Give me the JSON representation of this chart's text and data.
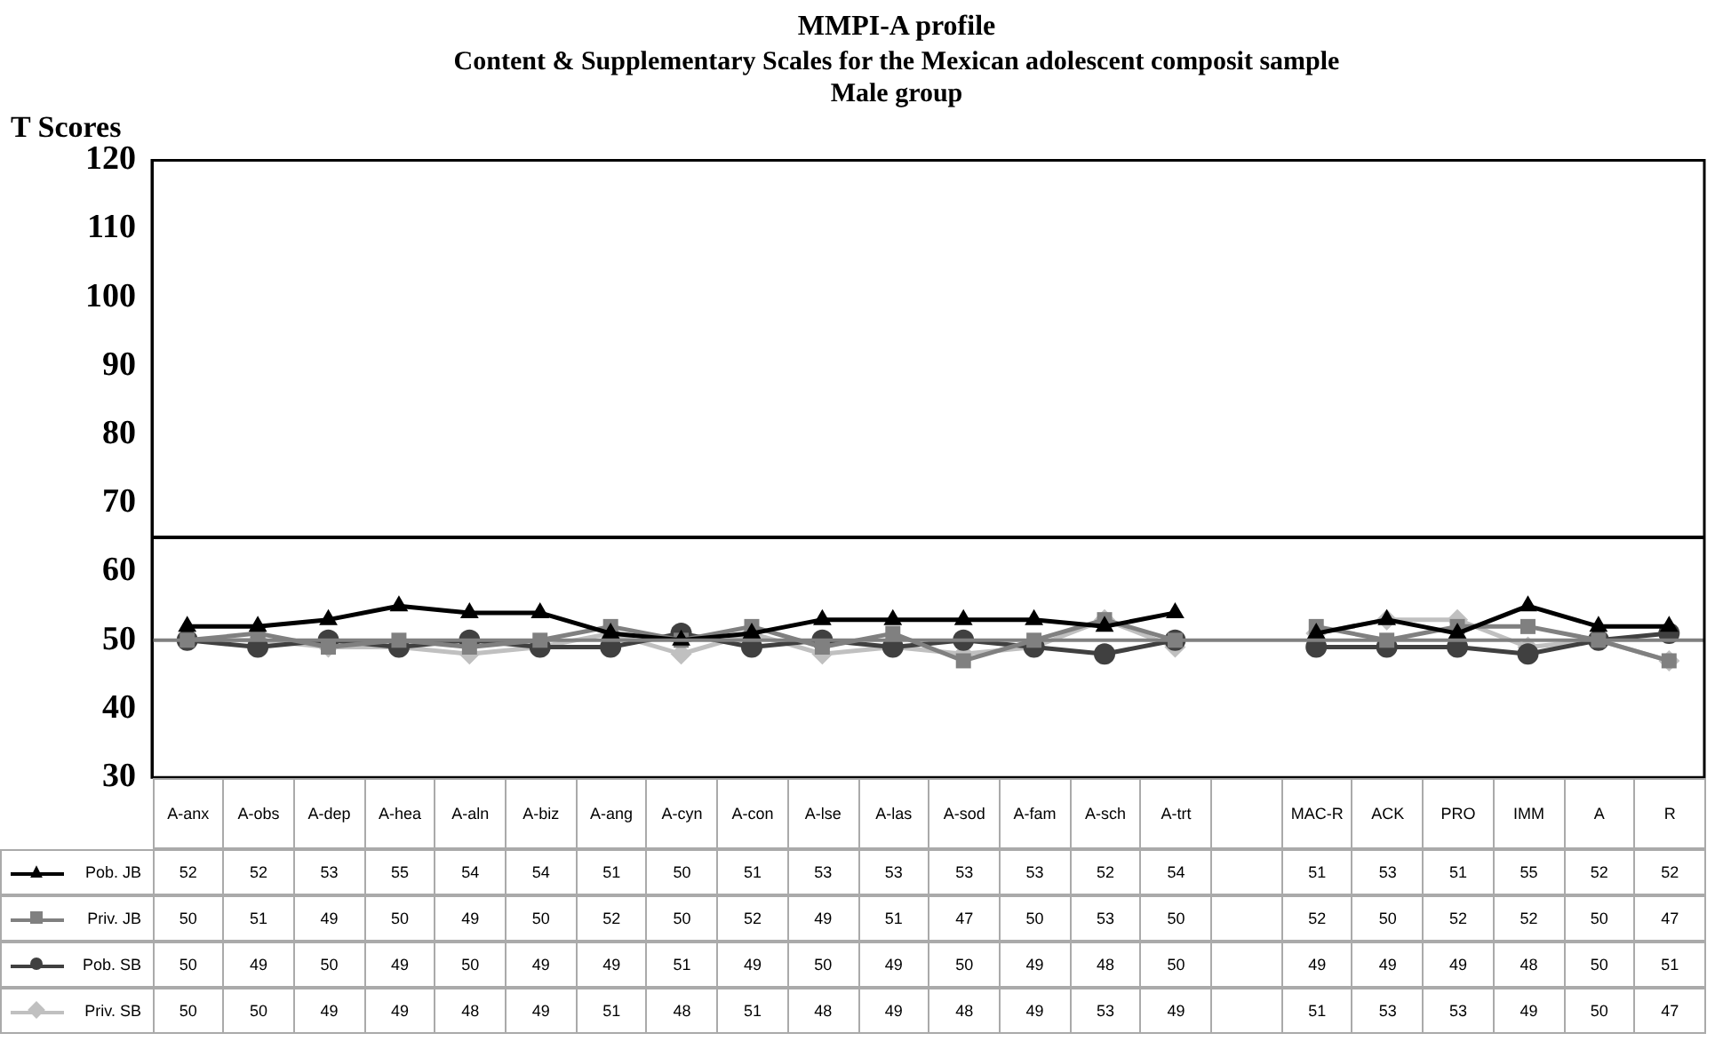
{
  "chart_data": {
    "type": "line",
    "title": "MMPI-A profile",
    "subtitle": "Content & Supplementary Scales for the Mexican adolescent composit sample\nMale group",
    "ylabel": "T Scores",
    "categories": [
      "A-anx",
      "A-obs",
      "A-dep",
      "A-hea",
      "A-aln",
      "A-biz",
      "A-ang",
      "A-cyn",
      "A-con",
      "A-lse",
      "A-las",
      "A-sod",
      "A-fam",
      "A-sch",
      "A-trt",
      null,
      "MAC-R",
      "ACK",
      "PRO",
      "IMM",
      "A",
      "R"
    ],
    "series": [
      {
        "name": "Pob. JB",
        "color": "#000000",
        "marker": "triangle",
        "values": [
          52,
          52,
          53,
          55,
          54,
          54,
          51,
          50,
          51,
          53,
          53,
          53,
          53,
          52,
          54,
          null,
          51,
          53,
          51,
          55,
          52,
          52
        ]
      },
      {
        "name": "Priv. JB",
        "color": "#808080",
        "marker": "square",
        "values": [
          50,
          51,
          49,
          50,
          49,
          50,
          52,
          50,
          52,
          49,
          51,
          47,
          50,
          53,
          50,
          null,
          52,
          50,
          52,
          52,
          50,
          47
        ]
      },
      {
        "name": "Pob. SB",
        "color": "#404040",
        "marker": "circle",
        "values": [
          50,
          49,
          50,
          49,
          50,
          49,
          49,
          51,
          49,
          50,
          49,
          50,
          49,
          48,
          50,
          null,
          49,
          49,
          49,
          48,
          50,
          51
        ]
      },
      {
        "name": "Priv. SB",
        "color": "#c0c0c0",
        "marker": "diamond",
        "values": [
          50,
          50,
          49,
          49,
          48,
          49,
          51,
          48,
          51,
          48,
          49,
          48,
          49,
          53,
          49,
          null,
          51,
          53,
          53,
          49,
          50,
          47
        ]
      }
    ],
    "ylim": [
      30,
      120
    ],
    "yticks": [
      30,
      40,
      50,
      60,
      70,
      80,
      90,
      100,
      110,
      120
    ],
    "ref_lines": [
      {
        "axis": "y",
        "value": 65,
        "color": "#000000"
      },
      {
        "axis": "y",
        "value": 50,
        "color": "#808080"
      }
    ],
    "data_labels": true,
    "legend": "bottom left"
  }
}
